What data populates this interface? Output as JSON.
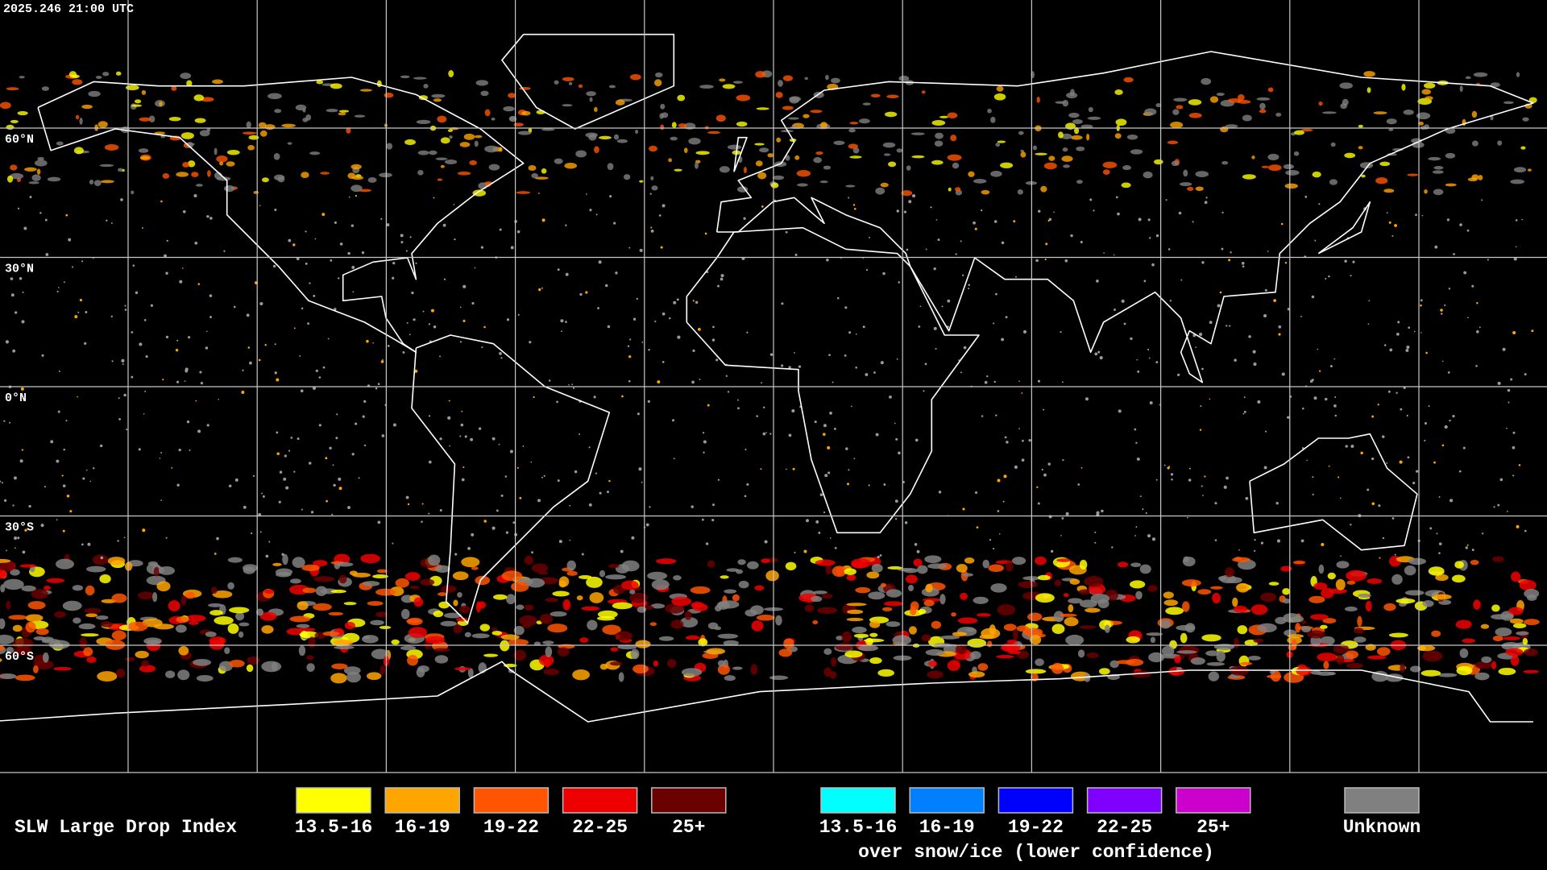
{
  "timestamp": "2025.246 21:00 UTC",
  "latitude_labels": [
    "60°N",
    "30°N",
    "0°N",
    "30°S",
    "60°S"
  ],
  "legend": {
    "title": "SLW Large Drop Index",
    "items": [
      {
        "label": "13.5-16",
        "color": "#ffff00"
      },
      {
        "label": "16-19",
        "color": "#ffa500"
      },
      {
        "label": "19-22",
        "color": "#ff5500"
      },
      {
        "label": "22-25",
        "color": "#ee0000"
      },
      {
        "label": "25+",
        "color": "#6b0000"
      }
    ],
    "snow_ice_items": [
      {
        "label": "13.5-16",
        "color": "#00ffff"
      },
      {
        "label": "16-19",
        "color": "#0080ff"
      },
      {
        "label": "19-22",
        "color": "#0000ff"
      },
      {
        "label": "22-25",
        "color": "#7f00ff"
      },
      {
        "label": "25+",
        "color": "#cc00cc"
      }
    ],
    "snow_ice_caption": "over snow/ice (lower confidence)",
    "unknown": {
      "label": "Unknown",
      "color": "#808080"
    }
  }
}
